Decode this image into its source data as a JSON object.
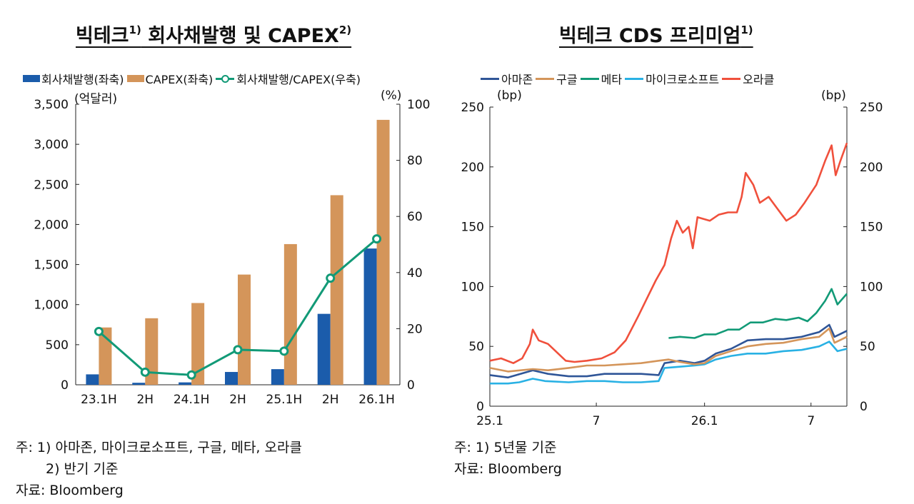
{
  "colors": {
    "bond": "#1b5cab",
    "capex": "#d4955a",
    "ratio": "#129a77",
    "amazon": "#2f5597",
    "google": "#d4955a",
    "meta": "#129a77",
    "microsoft": "#29b1e4",
    "oracle": "#f0503c"
  },
  "left": {
    "title": "빅테크 회사채발행 및 CAPEX",
    "title_sup_1": "1)",
    "title_sup_2": "2)",
    "legend": {
      "bond": "회사채발행(좌축)",
      "capex": "CAPEX(좌축)",
      "ratio": "회사채발행/CAPEX(우축)"
    },
    "unit_left": "(억달러)",
    "unit_right": "(%)",
    "notes": [
      "주: 1) 아마존, 마이크로소프트, 구글, 메타, 오라클",
      "2) 반기 기준",
      "자료: Bloomberg"
    ]
  },
  "right": {
    "title": "빅테크 CDS 프리미엄",
    "title_sup": "1)",
    "legend": {
      "amazon": "아마존",
      "google": "구글",
      "meta": "메타",
      "microsoft": "마이크로소프트",
      "oracle": "오라클"
    },
    "unit_left": "(bp)",
    "unit_right": "(bp)",
    "notes": [
      "주: 1) 5년물 기준",
      "자료: Bloomberg"
    ]
  },
  "chart_data": [
    {
      "type": "bar",
      "title": "빅테크 회사채발행 및 CAPEX",
      "categories": [
        "23.1H",
        "2H",
        "24.1H",
        "2H",
        "25.1H",
        "2H",
        "26.1H"
      ],
      "ylim": [
        0,
        3500
      ],
      "yticks": [
        0,
        500,
        1000,
        1500,
        2000,
        2500,
        3000,
        3500
      ],
      "yticks_label": [
        "0",
        "500",
        "1,000",
        "1,500",
        "2,000",
        "2,500",
        "3,000",
        "3,500"
      ],
      "y2lim": [
        0,
        100
      ],
      "y2ticks": [
        0,
        20,
        40,
        60,
        80,
        100
      ],
      "series": [
        {
          "name": "회사채발행(좌축)",
          "type": "bar",
          "axis": "left",
          "values": [
            130,
            25,
            30,
            160,
            195,
            885,
            1700
          ]
        },
        {
          "name": "CAPEX(좌축)",
          "type": "bar",
          "axis": "left",
          "values": [
            715,
            830,
            1020,
            1375,
            1755,
            2365,
            3305
          ]
        },
        {
          "name": "회사채발행/CAPEX(우축)",
          "type": "line",
          "axis": "right",
          "values": [
            19,
            4.5,
            3.5,
            12.5,
            12,
            38,
            52
          ]
        }
      ]
    },
    {
      "type": "line",
      "title": "빅테크 CDS 프리미엄",
      "xlim": [
        "2025-01-01",
        "2026-08-31"
      ],
      "xticks": [
        "2025-01-01",
        "2025-07-01",
        "2026-01-01",
        "2026-07-01"
      ],
      "xticks_label": [
        "25.1",
        "7",
        "26.1",
        "7"
      ],
      "ylim": [
        0,
        250
      ],
      "yticks": [
        0,
        50,
        100,
        150,
        200,
        250
      ],
      "series": [
        {
          "name": "아마존",
          "color": "#2f5597",
          "points": [
            [
              "2025-01-01",
              26
            ],
            [
              "2025-02-01",
              24
            ],
            [
              "2025-03-15",
              30
            ],
            [
              "2025-04-10",
              27
            ],
            [
              "2025-05-15",
              25
            ],
            [
              "2025-06-15",
              25
            ],
            [
              "2025-07-15",
              27
            ],
            [
              "2025-08-15",
              27
            ],
            [
              "2025-09-15",
              27
            ],
            [
              "2025-10-15",
              26
            ],
            [
              "2025-10-25",
              36
            ],
            [
              "2025-11-20",
              38
            ],
            [
              "2025-12-15",
              36
            ],
            [
              "2026-01-01",
              38
            ],
            [
              "2026-01-20",
              44
            ],
            [
              "2026-02-15",
              48
            ],
            [
              "2026-03-15",
              55
            ],
            [
              "2026-04-15",
              56
            ],
            [
              "2026-05-15",
              56
            ],
            [
              "2026-06-15",
              58
            ],
            [
              "2026-07-15",
              62
            ],
            [
              "2026-08-01",
              68
            ],
            [
              "2026-08-10",
              58
            ],
            [
              "2026-08-31",
              63
            ]
          ]
        },
        {
          "name": "구글",
          "color": "#d4955a",
          "points": [
            [
              "2025-01-01",
              32
            ],
            [
              "2025-02-01",
              29
            ],
            [
              "2025-03-15",
              31
            ],
            [
              "2025-04-10",
              30
            ],
            [
              "2025-05-15",
              32
            ],
            [
              "2025-06-15",
              34
            ],
            [
              "2025-07-15",
              34
            ],
            [
              "2025-08-15",
              35
            ],
            [
              "2025-09-15",
              36
            ],
            [
              "2025-10-15",
              38
            ],
            [
              "2025-11-01",
              39
            ],
            [
              "2025-11-20",
              37
            ],
            [
              "2025-12-15",
              35
            ],
            [
              "2026-01-01",
              36
            ],
            [
              "2026-01-20",
              42
            ],
            [
              "2026-02-15",
              46
            ],
            [
              "2026-03-15",
              50
            ],
            [
              "2026-04-15",
              52
            ],
            [
              "2026-05-15",
              53
            ],
            [
              "2026-06-15",
              56
            ],
            [
              "2026-07-15",
              58
            ],
            [
              "2026-08-01",
              65
            ],
            [
              "2026-08-10",
              53
            ],
            [
              "2026-08-31",
              58
            ]
          ]
        },
        {
          "name": "메타",
          "color": "#129a77",
          "points": [
            [
              "2025-11-01",
              57
            ],
            [
              "2025-11-20",
              58
            ],
            [
              "2025-12-15",
              57
            ],
            [
              "2026-01-01",
              60
            ],
            [
              "2026-01-20",
              60
            ],
            [
              "2026-02-10",
              64
            ],
            [
              "2026-03-01",
              64
            ],
            [
              "2026-03-20",
              70
            ],
            [
              "2026-04-10",
              70
            ],
            [
              "2026-05-01",
              73
            ],
            [
              "2026-05-20",
              72
            ],
            [
              "2026-06-10",
              74
            ],
            [
              "2026-06-25",
              71
            ],
            [
              "2026-07-10",
              78
            ],
            [
              "2026-07-25",
              88
            ],
            [
              "2026-08-05",
              98
            ],
            [
              "2026-08-15",
              85
            ],
            [
              "2026-08-31",
              94
            ]
          ]
        },
        {
          "name": "마이크로소프트",
          "color": "#29b1e4",
          "points": [
            [
              "2025-01-01",
              19
            ],
            [
              "2025-02-01",
              19
            ],
            [
              "2025-02-20",
              20
            ],
            [
              "2025-03-15",
              23
            ],
            [
              "2025-04-05",
              21
            ],
            [
              "2025-05-15",
              20
            ],
            [
              "2025-06-15",
              21
            ],
            [
              "2025-07-15",
              21
            ],
            [
              "2025-08-15",
              20
            ],
            [
              "2025-09-15",
              20
            ],
            [
              "2025-10-15",
              21
            ],
            [
              "2025-10-25",
              32
            ],
            [
              "2025-11-20",
              33
            ],
            [
              "2025-12-15",
              34
            ],
            [
              "2026-01-01",
              35
            ],
            [
              "2026-01-20",
              39
            ],
            [
              "2026-02-15",
              42
            ],
            [
              "2026-03-15",
              44
            ],
            [
              "2026-04-15",
              44
            ],
            [
              "2026-05-15",
              46
            ],
            [
              "2026-06-15",
              47
            ],
            [
              "2026-07-15",
              50
            ],
            [
              "2026-08-01",
              54
            ],
            [
              "2026-08-15",
              46
            ],
            [
              "2026-08-31",
              48
            ]
          ]
        },
        {
          "name": "오라클",
          "color": "#f0503c",
          "points": [
            [
              "2025-01-01",
              38
            ],
            [
              "2025-01-20",
              40
            ],
            [
              "2025-02-10",
              36
            ],
            [
              "2025-02-25",
              40
            ],
            [
              "2025-03-10",
              52
            ],
            [
              "2025-03-15",
              64
            ],
            [
              "2025-03-25",
              55
            ],
            [
              "2025-04-10",
              52
            ],
            [
              "2025-04-25",
              45
            ],
            [
              "2025-05-10",
              38
            ],
            [
              "2025-05-25",
              37
            ],
            [
              "2025-06-15",
              38
            ],
            [
              "2025-07-10",
              40
            ],
            [
              "2025-08-01",
              45
            ],
            [
              "2025-08-20",
              55
            ],
            [
              "2025-09-10",
              75
            ],
            [
              "2025-09-25",
              90
            ],
            [
              "2025-10-10",
              105
            ],
            [
              "2025-10-25",
              118
            ],
            [
              "2025-11-05",
              140
            ],
            [
              "2025-11-15",
              155
            ],
            [
              "2025-11-25",
              145
            ],
            [
              "2025-12-05",
              150
            ],
            [
              "2025-12-12",
              132
            ],
            [
              "2025-12-20",
              158
            ],
            [
              "2026-01-10",
              155
            ],
            [
              "2026-01-25",
              160
            ],
            [
              "2026-02-10",
              162
            ],
            [
              "2026-02-25",
              162
            ],
            [
              "2026-03-05",
              175
            ],
            [
              "2026-03-12",
              195
            ],
            [
              "2026-03-25",
              185
            ],
            [
              "2026-04-05",
              170
            ],
            [
              "2026-04-20",
              175
            ],
            [
              "2026-05-05",
              165
            ],
            [
              "2026-05-20",
              155
            ],
            [
              "2026-06-05",
              160
            ],
            [
              "2026-06-20",
              170
            ],
            [
              "2026-07-10",
              185
            ],
            [
              "2026-07-25",
              205
            ],
            [
              "2026-08-05",
              218
            ],
            [
              "2026-08-12",
              193
            ],
            [
              "2026-08-20",
              205
            ],
            [
              "2026-08-31",
              220
            ]
          ]
        }
      ]
    }
  ]
}
